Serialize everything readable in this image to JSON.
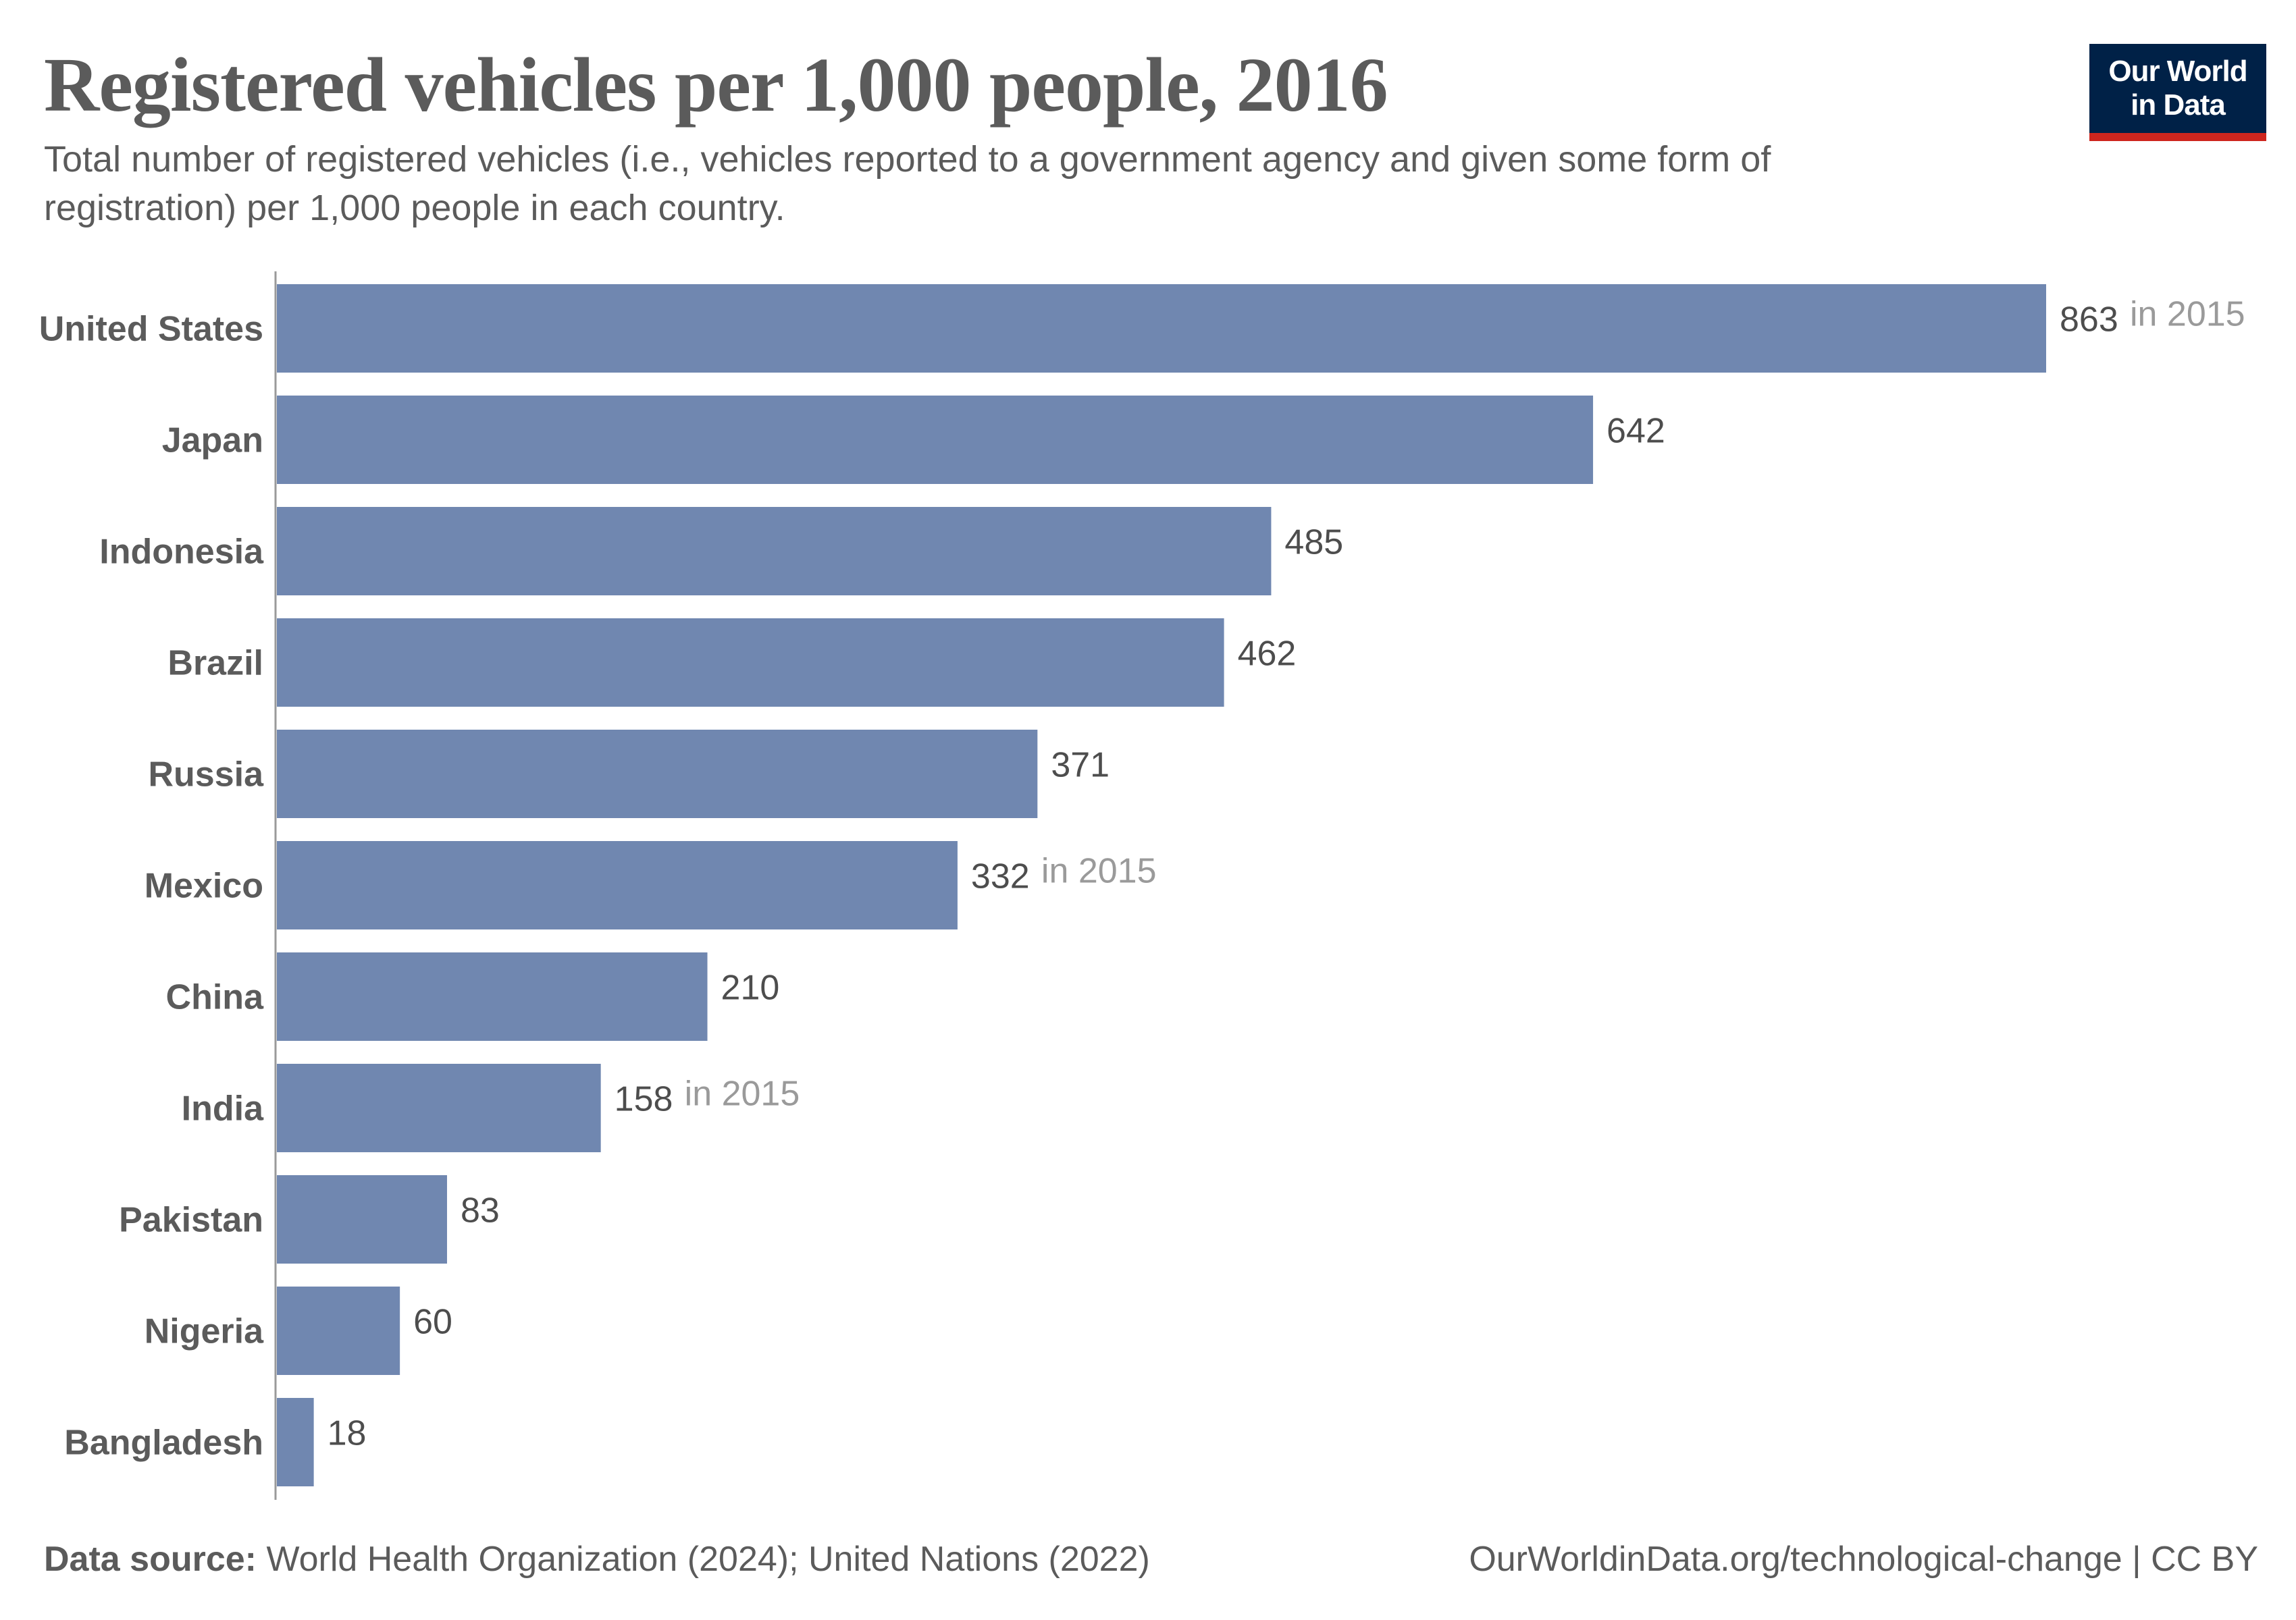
{
  "header": {
    "title": "Registered vehicles per 1,000 people, 2016",
    "subtitle": "Total number of registered vehicles (i.e., vehicles reported to a government agency and given some form of registration) per 1,000 people in each country.",
    "logo_line1": "Our World",
    "logo_line2": "in Data"
  },
  "footer": {
    "source_label": "Data source:",
    "source_text": "World Health Organization (2024); United Nations (2022)",
    "url": "OurWorldinData.org/technological-change",
    "license": "| CC BY"
  },
  "colors": {
    "bar": "#7087b0",
    "text": "#5b5b5b",
    "value_label": "#4d4d4d",
    "year_note": "#9a9a9a",
    "axis": "#9a9a9a",
    "logo_bg": "#002147",
    "logo_accent": "#ce261e"
  },
  "chart_data": {
    "type": "bar",
    "orientation": "horizontal",
    "title": "Registered vehicles per 1,000 people, 2016",
    "xlabel": "",
    "ylabel": "",
    "xlim": [
      0,
      863
    ],
    "grid": false,
    "categories": [
      "United States",
      "Japan",
      "Indonesia",
      "Brazil",
      "Russia",
      "Mexico",
      "China",
      "India",
      "Pakistan",
      "Nigeria",
      "Bangladesh"
    ],
    "values": [
      863,
      642,
      485,
      462,
      371,
      332,
      210,
      158,
      83,
      60,
      18
    ],
    "value_labels": [
      "863",
      "642",
      "485",
      "462",
      "371",
      "332",
      "210",
      "158",
      "83",
      "60",
      "18"
    ],
    "annotations": [
      "in 2015",
      "",
      "",
      "",
      "",
      "in 2015",
      "",
      "in 2015",
      "",
      "",
      ""
    ]
  }
}
